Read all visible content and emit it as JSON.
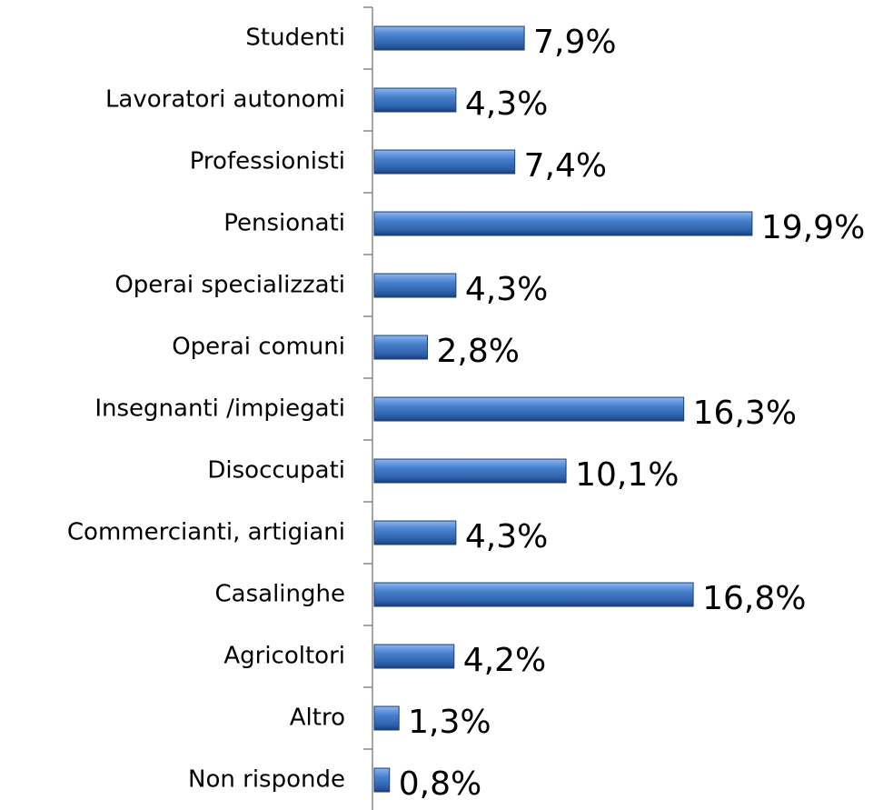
{
  "chart_data": {
    "type": "bar",
    "orientation": "horizontal",
    "color": "#3a70c0",
    "categories": [
      "Studenti",
      "Lavoratori autonomi",
      "Professionisti",
      "Pensionati",
      "Operai specializzati",
      "Operai comuni",
      "Insegnanti /impiegati",
      "Disoccupati",
      "Commercianti, artigiani",
      "Casalinghe",
      "Agricoltori",
      "Altro",
      "Non risponde"
    ],
    "values": [
      7.9,
      4.3,
      7.4,
      19.9,
      4.3,
      2.8,
      16.3,
      10.1,
      4.3,
      16.8,
      4.2,
      1.3,
      0.8
    ],
    "value_labels": [
      "7,9%",
      "4,3%",
      "7,4%",
      "19,9%",
      "4,3%",
      "2,8%",
      "16,3%",
      "10,1%",
      "4,3%",
      "16,8%",
      "4,2%",
      "1,3%",
      "0,8%"
    ]
  }
}
